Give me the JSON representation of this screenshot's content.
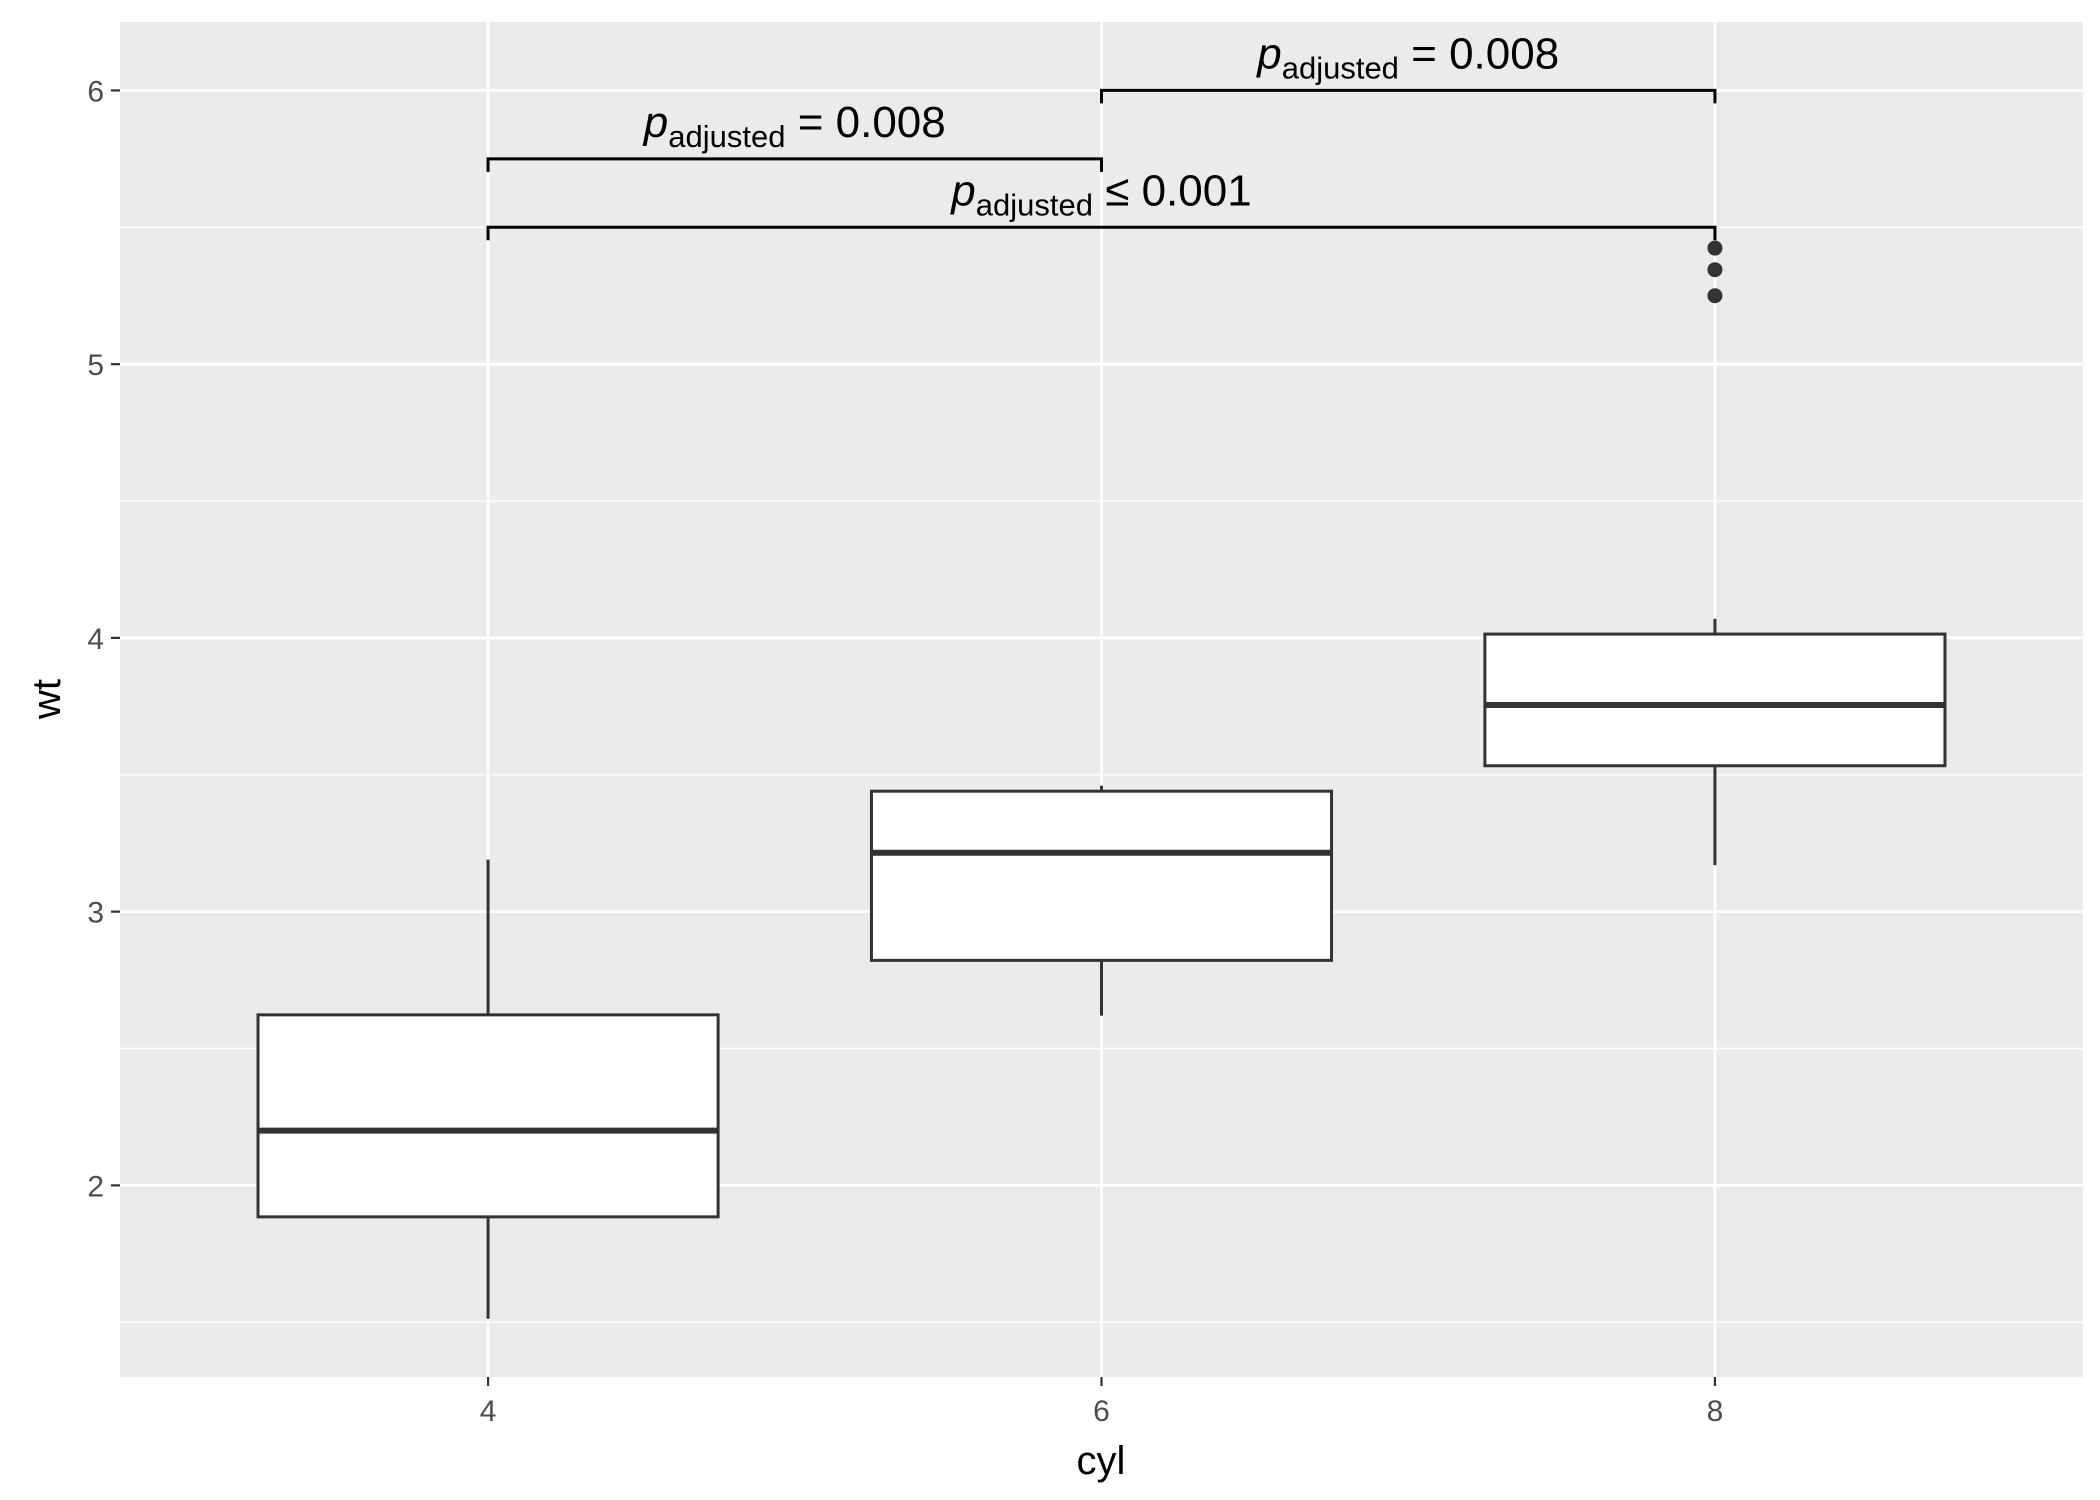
{
  "chart_data": {
    "type": "boxplot",
    "xlabel": "cyl",
    "ylabel": "wt",
    "categories": [
      "4",
      "6",
      "8"
    ],
    "ylim": [
      1.3,
      6.25
    ],
    "yticks": [
      "2",
      "3",
      "4",
      "5",
      "6"
    ],
    "grid": true,
    "panel_background": "#ebebeb",
    "grid_color": "#ffffff",
    "box_fill": "#ffffff",
    "box_stroke": "#333333",
    "boxes": [
      {
        "category": "4",
        "whisker_low": 1.513,
        "q1": 1.885,
        "median": 2.2,
        "q3": 2.623,
        "whisker_high": 3.19,
        "outliers": []
      },
      {
        "category": "6",
        "whisker_low": 2.62,
        "q1": 2.822,
        "median": 3.215,
        "q3": 3.44,
        "whisker_high": 3.46,
        "outliers": []
      },
      {
        "category": "8",
        "whisker_low": 3.17,
        "q1": 3.533,
        "median": 3.755,
        "q3": 4.014,
        "whisker_high": 4.07,
        "outliers": [
          5.25,
          5.345,
          5.424
        ]
      }
    ],
    "comparisons": [
      {
        "from": "4",
        "to": "6",
        "y": 5.75,
        "label_main": "p",
        "label_sub": "adjusted",
        "label_rest": " = 0.008"
      },
      {
        "from": "4",
        "to": "8",
        "y": 5.5,
        "label_main": "p",
        "label_sub": "adjusted",
        "label_rest": " ≤ 0.001"
      },
      {
        "from": "6",
        "to": "8",
        "y": 6.0,
        "label_main": "p",
        "label_sub": "adjusted",
        "label_rest": " = 0.008"
      }
    ]
  }
}
